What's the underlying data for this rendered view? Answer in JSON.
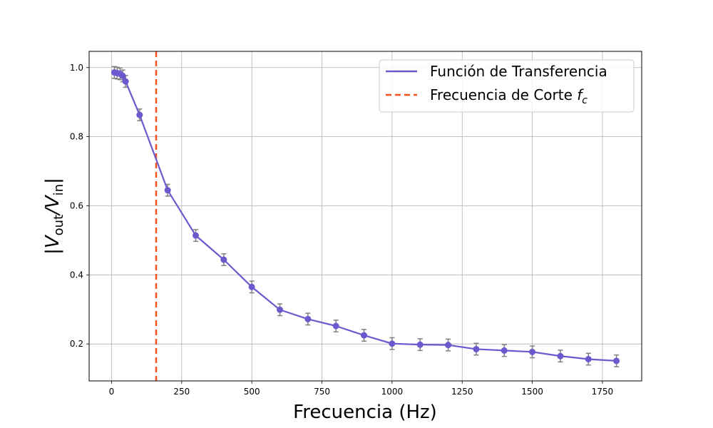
{
  "chart_data": {
    "type": "line",
    "xlabel": "Frecuencia (Hz)",
    "ylabel": {
      "base_open": "|V",
      "sub1": "out",
      "mid": "/V",
      "sub2": "in",
      "close": "|"
    },
    "xlim": [
      -80,
      1890
    ],
    "ylim": [
      0.093,
      1.047
    ],
    "xticks": [
      0,
      250,
      500,
      750,
      1000,
      1250,
      1500,
      1750
    ],
    "yticks": [
      0.2,
      0.4,
      0.6,
      0.8,
      1.0
    ],
    "xtick_labels": [
      "0",
      "250",
      "500",
      "750",
      "1000",
      "1250",
      "1500",
      "1750"
    ],
    "ytick_labels": [
      "0.2",
      "0.4",
      "0.6",
      "0.8",
      "1.0"
    ],
    "grid": true,
    "legend_position": "top-right",
    "series": [
      {
        "name": "Función de Transferencia",
        "color": "#6a5acd",
        "errorbar_color": "#808080",
        "x": [
          10,
          20,
          30,
          40,
          50,
          100,
          200,
          300,
          400,
          500,
          600,
          700,
          800,
          900,
          1000,
          1100,
          1200,
          1300,
          1400,
          1500,
          1600,
          1700,
          1800
        ],
        "y": [
          0.986,
          0.984,
          0.982,
          0.976,
          0.96,
          0.863,
          0.645,
          0.514,
          0.444,
          0.365,
          0.299,
          0.272,
          0.252,
          0.225,
          0.201,
          0.198,
          0.197,
          0.185,
          0.181,
          0.177,
          0.165,
          0.156,
          0.151
        ],
        "yerr": 0.017
      }
    ],
    "vline": {
      "name_text": "Frecuencia de Corte ",
      "name_symbol": "f",
      "name_symbol_sub": "c",
      "x": 159,
      "color": "#f4511e"
    }
  }
}
